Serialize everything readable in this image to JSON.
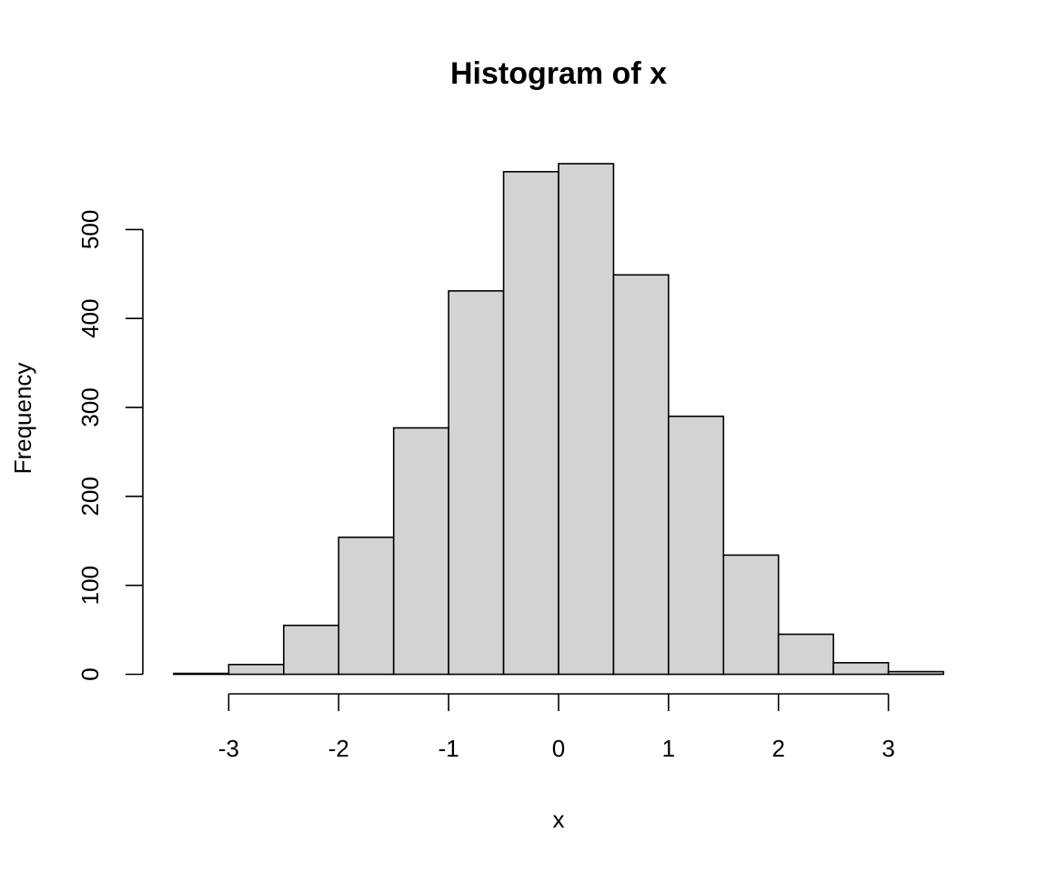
{
  "chart_data": {
    "type": "bar",
    "title": "Histogram of x",
    "xlabel": "x",
    "ylabel": "Frequency",
    "bin_edges": [
      -3.5,
      -3.0,
      -2.5,
      -2.0,
      -1.5,
      -1.0,
      -0.5,
      0.0,
      0.5,
      1.0,
      1.5,
      2.0,
      2.5,
      3.0,
      3.5
    ],
    "values": [
      1,
      11,
      55,
      154,
      277,
      431,
      565,
      574,
      449,
      290,
      134,
      45,
      13,
      3
    ],
    "xlim": [
      -3.5,
      3.5
    ],
    "ylim": [
      0,
      574
    ],
    "x_ticks": [
      -3,
      -2,
      -1,
      0,
      1,
      2,
      3
    ],
    "x_tick_labels": [
      "-3",
      "-2",
      "-1",
      "0",
      "1",
      "2",
      "3"
    ],
    "y_ticks": [
      0,
      100,
      200,
      300,
      400,
      500
    ],
    "y_tick_labels": [
      "0",
      "100",
      "200",
      "300",
      "400",
      "500"
    ],
    "bar_color": "#d3d3d3",
    "grid": false
  }
}
